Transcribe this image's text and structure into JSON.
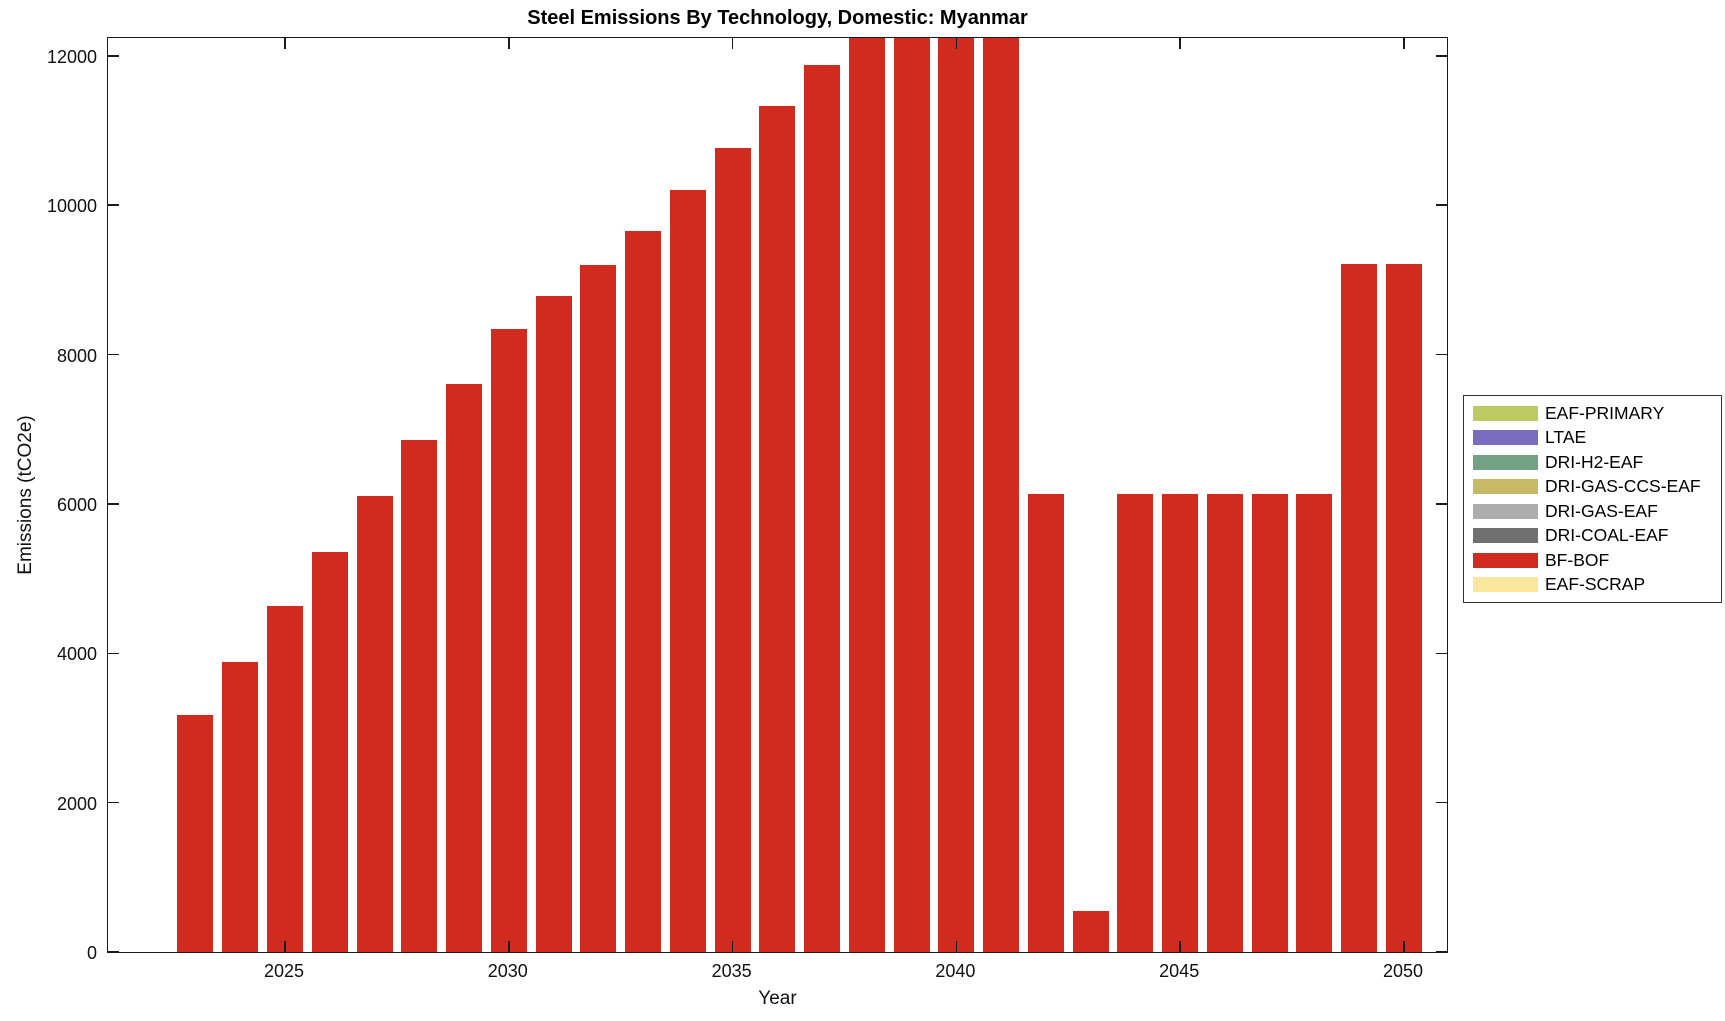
{
  "title": "Steel Emissions By Technology, Domestic: Myanmar",
  "xlabel": "Year",
  "ylabel": "Emissions (tCO2e)",
  "legend_entries": [
    {
      "label": "EAF-PRIMARY",
      "color": "#bdca62"
    },
    {
      "label": "LTAE",
      "color": "#7a6cbe"
    },
    {
      "label": "DRI-H2-EAF",
      "color": "#72a184"
    },
    {
      "label": "DRI-GAS-CCS-EAF",
      "color": "#c8b964"
    },
    {
      "label": "DRI-GAS-EAF",
      "color": "#adadad"
    },
    {
      "label": "DRI-COAL-EAF",
      "color": "#707070"
    },
    {
      "label": "BF-BOF",
      "color": "#d12b20"
    },
    {
      "label": "EAF-SCRAP",
      "color": "#fae69c"
    }
  ],
  "chart_data": {
    "type": "bar",
    "title": "Steel Emissions By Technology, Domestic: Myanmar",
    "xlabel": "Year",
    "ylabel": "Emissions (tCO2e)",
    "categories": [
      2023,
      2024,
      2025,
      2026,
      2027,
      2028,
      2029,
      2030,
      2031,
      2032,
      2033,
      2034,
      2035,
      2036,
      2037,
      2038,
      2039,
      2040,
      2041,
      2042,
      2043,
      2044,
      2045,
      2046,
      2047,
      2048,
      2049,
      2050
    ],
    "series": [
      {
        "name": "BF-BOF",
        "color": "#d12b20",
        "values": [
          3180,
          3890,
          4630,
          5360,
          6110,
          6850,
          7600,
          8340,
          8780,
          9200,
          9660,
          10210,
          10770,
          11330,
          11880,
          12270,
          12270,
          12270,
          12270,
          6130,
          550,
          6130,
          6130,
          6130,
          6130,
          6130,
          9210,
          9210
        ]
      }
    ],
    "clipped_years": [
      2038,
      2039,
      2040,
      2041
    ],
    "clipped_note": "Bars for 2038-2041 are clipped at the top of the plot (values reach or exceed the visible axis maximum)",
    "x_ticks": [
      2025,
      2030,
      2035,
      2040,
      2045,
      2050
    ],
    "y_ticks": [
      0,
      2000,
      4000,
      6000,
      8000,
      10000,
      12000
    ],
    "ylim": [
      0,
      12266
    ],
    "bar_width_fraction": 0.8,
    "grid": false,
    "background": "#ffffff",
    "legend_position": "right-outside",
    "legend_entries": [
      "EAF-PRIMARY",
      "LTAE",
      "DRI-H2-EAF",
      "DRI-GAS-CCS-EAF",
      "DRI-GAS-EAF",
      "DRI-COAL-EAF",
      "BF-BOF",
      "EAF-SCRAP"
    ]
  }
}
